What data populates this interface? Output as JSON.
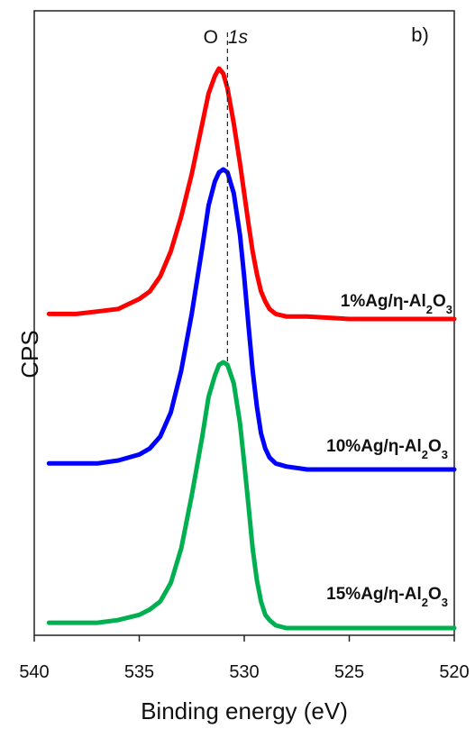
{
  "chart_data": {
    "type": "line",
    "panel_label": "b)",
    "xlabel": "Binding energy (eV)",
    "ylabel": "CPS",
    "xlim": [
      540,
      520
    ],
    "x_ticks": [
      "540",
      "535",
      "530",
      "525",
      "520"
    ],
    "y_ticks_shown": false,
    "grid": false,
    "annotations": [
      {
        "text_main": "O",
        "text_italic": "1s",
        "x": 530.8,
        "style": "dashed vertical line"
      }
    ],
    "series": [
      {
        "name_parts": [
          "1%Ag/η-Al",
          "2",
          "O",
          "3"
        ],
        "color": "#ff0000",
        "x": [
          539.3,
          538,
          537,
          536,
          535,
          534.5,
          534,
          533.5,
          533,
          532.5,
          532,
          531.7,
          531.4,
          531.2,
          531.0,
          530.8,
          530.5,
          530.2,
          530.0,
          529.8,
          529.6,
          529.4,
          529.2,
          529.0,
          528.8,
          528.5,
          528.0,
          527.0,
          525.0,
          523.0,
          520.0
        ],
        "y": [
          0.02,
          0.02,
          0.03,
          0.04,
          0.08,
          0.11,
          0.17,
          0.27,
          0.41,
          0.58,
          0.78,
          0.9,
          0.97,
          1.0,
          0.98,
          0.92,
          0.78,
          0.62,
          0.5,
          0.38,
          0.27,
          0.18,
          0.11,
          0.07,
          0.04,
          0.02,
          0.01,
          0.01,
          0.0,
          0.0,
          0.0
        ]
      },
      {
        "name_parts": [
          "10%Ag/η-Al",
          "2",
          "O",
          "3"
        ],
        "color": "#0000ff",
        "x": [
          539.3,
          538,
          537,
          536,
          535,
          534.5,
          534,
          533.5,
          533,
          532.5,
          532,
          531.7,
          531.4,
          531.2,
          531.0,
          530.8,
          530.5,
          530.2,
          530.0,
          529.8,
          529.6,
          529.4,
          529.2,
          529.0,
          528.8,
          528.5,
          528.0,
          527.0,
          525.0,
          523.0,
          520.0
        ],
        "y": [
          0.02,
          0.02,
          0.02,
          0.03,
          0.05,
          0.07,
          0.11,
          0.19,
          0.33,
          0.52,
          0.74,
          0.88,
          0.96,
          0.99,
          1.0,
          0.99,
          0.92,
          0.78,
          0.64,
          0.48,
          0.33,
          0.21,
          0.12,
          0.07,
          0.04,
          0.02,
          0.01,
          0.0,
          0.0,
          0.0,
          0.0
        ]
      },
      {
        "name_parts": [
          "15%Ag/η-Al",
          "2",
          "O",
          "3"
        ],
        "color": "#00b050",
        "x": [
          539.3,
          538,
          537,
          536,
          535,
          534.5,
          534,
          533.5,
          533,
          532.5,
          532,
          531.7,
          531.4,
          531.2,
          531.0,
          530.8,
          530.5,
          530.2,
          530.0,
          529.8,
          529.6,
          529.4,
          529.2,
          529.0,
          528.8,
          528.5,
          528.0,
          527.0,
          525.0,
          523.0,
          520.0
        ],
        "y": [
          0.02,
          0.02,
          0.02,
          0.03,
          0.05,
          0.07,
          0.1,
          0.17,
          0.3,
          0.5,
          0.72,
          0.87,
          0.95,
          0.99,
          1.0,
          0.99,
          0.92,
          0.77,
          0.62,
          0.46,
          0.3,
          0.18,
          0.1,
          0.05,
          0.03,
          0.01,
          0.0,
          0.0,
          0.0,
          0.0,
          0.0
        ]
      }
    ]
  }
}
